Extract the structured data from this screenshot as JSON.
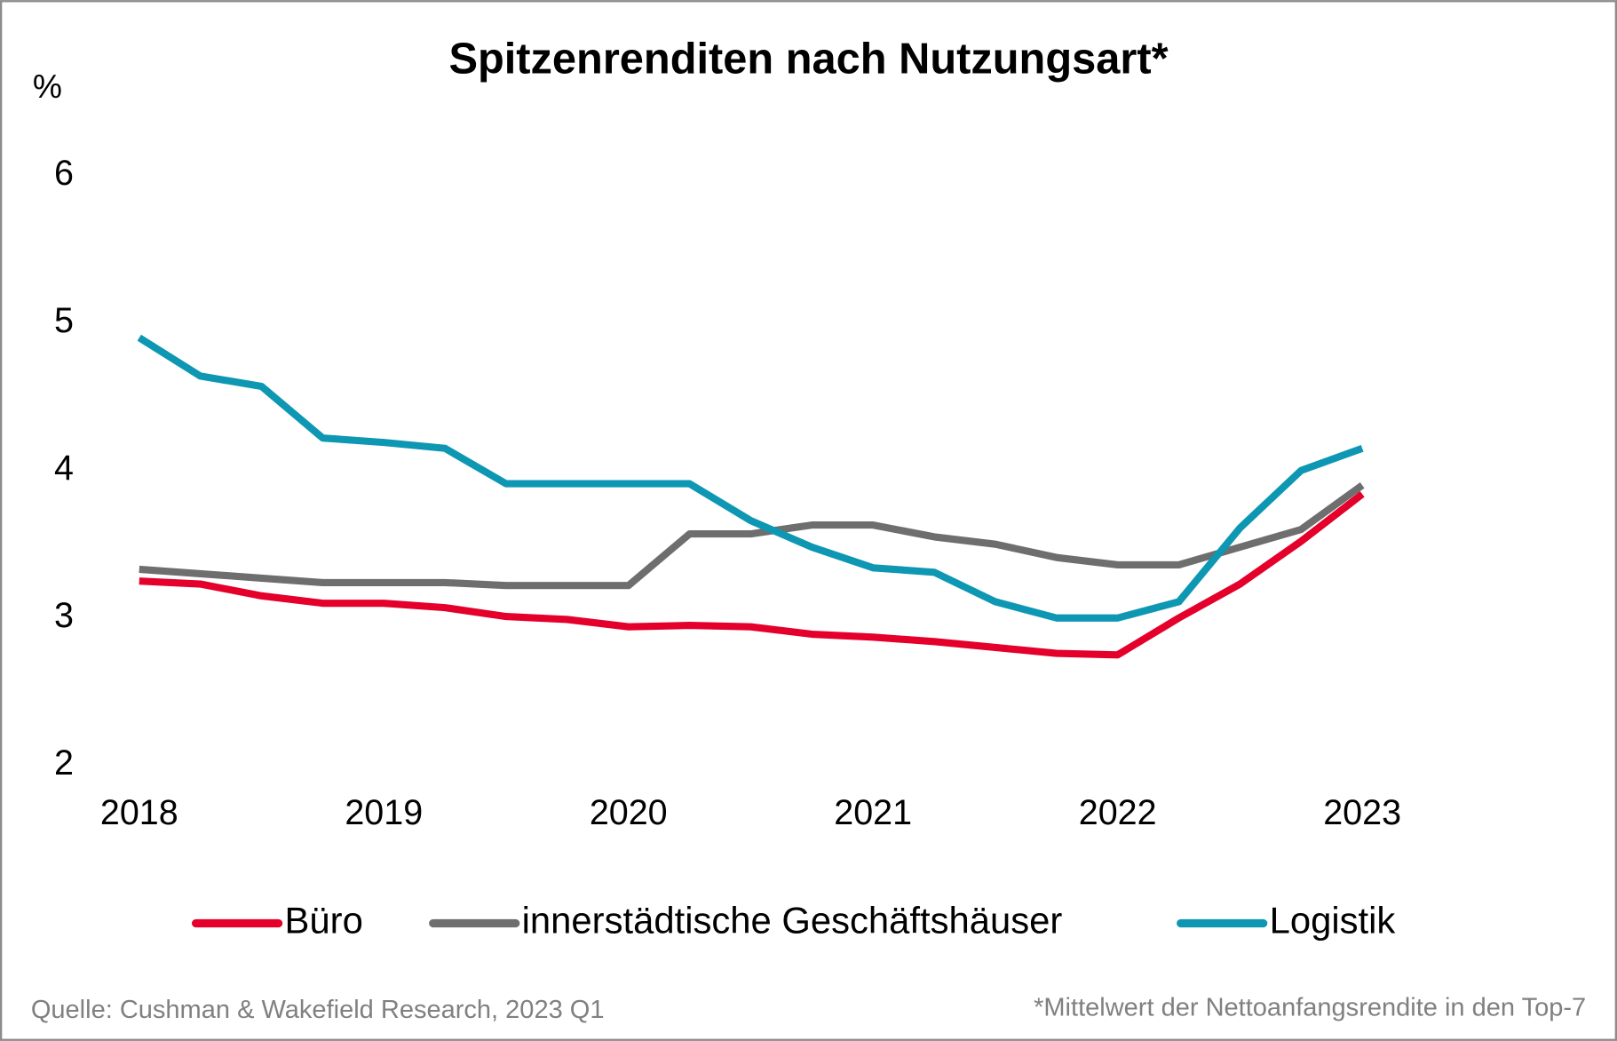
{
  "chart_data": {
    "type": "line",
    "title": "Spitzenrenditen nach Nutzungsart*",
    "y_label": "%",
    "categories": [
      "2018",
      null,
      null,
      null,
      "2019",
      null,
      null,
      null,
      "2020",
      null,
      null,
      null,
      "2021",
      null,
      null,
      null,
      "2022",
      null,
      null,
      null,
      "2023"
    ],
    "series": [
      {
        "name": "Büro",
        "color": "#e4002b",
        "values": [
          3.25,
          3.23,
          3.15,
          3.1,
          3.1,
          3.07,
          3.01,
          2.99,
          2.94,
          2.95,
          2.94,
          2.89,
          2.87,
          2.84,
          2.8,
          2.76,
          2.75,
          3.0,
          3.23,
          3.52,
          3.84
        ]
      },
      {
        "name": "innerstädtische Geschäftshäuser",
        "color": "#6e6e6e",
        "values": [
          3.33,
          3.3,
          3.27,
          3.24,
          3.24,
          3.24,
          3.22,
          3.22,
          3.22,
          3.57,
          3.57,
          3.63,
          3.63,
          3.55,
          3.5,
          3.41,
          3.36,
          3.36,
          3.48,
          3.6,
          3.9
        ]
      },
      {
        "name": "Logistik",
        "color": "#0e97b3",
        "values": [
          4.9,
          4.64,
          4.57,
          4.22,
          4.19,
          4.15,
          3.91,
          3.91,
          3.91,
          3.91,
          3.66,
          3.48,
          3.34,
          3.31,
          3.11,
          3.0,
          3.0,
          3.11,
          3.61,
          4.0,
          4.15
        ]
      }
    ],
    "ylim": [
      2,
      6
    ],
    "yticks": [
      2,
      3,
      4,
      5,
      6
    ],
    "grid": false,
    "legend": "bottom",
    "source": "Quelle: Cushman & Wakefield Research, 2023 Q1",
    "footnote": "*Mittelwert der Nettoanfangsrendite in den Top-7"
  }
}
